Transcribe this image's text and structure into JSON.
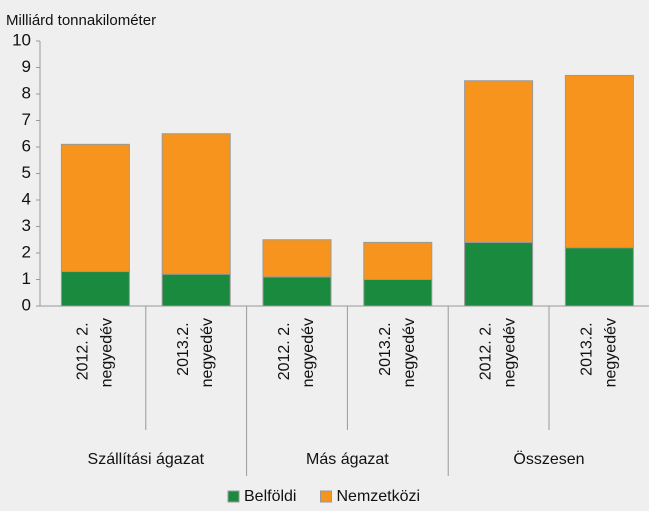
{
  "chart_data": {
    "type": "stacked_bar",
    "y_axis_label": "Milliárd tonnakilométer",
    "categories": [
      "2012. 2. negyedév",
      "2013.2. negyedév",
      "2012. 2. negyedév",
      "2013.2. negyedév",
      "2012. 2. negyedév",
      "2013.2. negyedév"
    ],
    "groups": [
      "Szállítási ágazat",
      "Más ágazat",
      "Összesen"
    ],
    "series": [
      {
        "name": "Belföldi",
        "color": "#1a8a3f",
        "values": [
          1.3,
          1.2,
          1.1,
          1.0,
          2.4,
          2.2
        ]
      },
      {
        "name": "Nemzetközi",
        "color": "#f7941d",
        "values": [
          4.8,
          5.3,
          1.4,
          1.4,
          6.1,
          6.5
        ]
      }
    ],
    "ylim": [
      0,
      10
    ],
    "yticks": [
      0,
      1,
      2,
      3,
      4,
      5,
      6,
      7,
      8,
      9,
      10
    ],
    "grid": false,
    "legend": "bottom"
  }
}
